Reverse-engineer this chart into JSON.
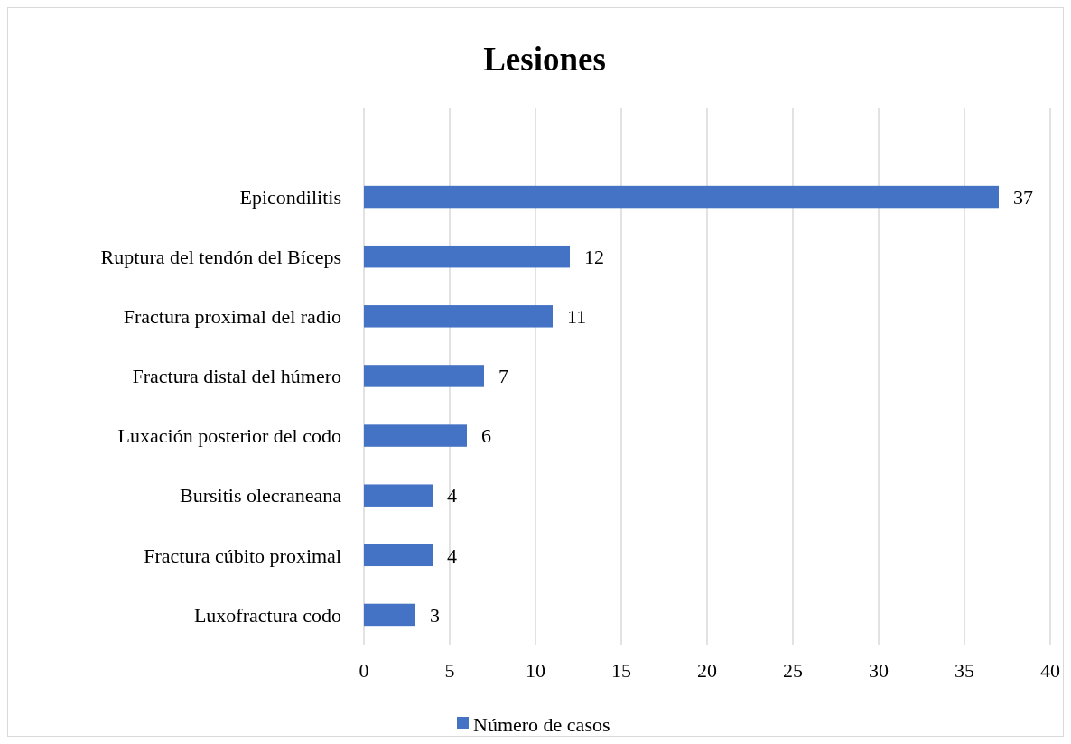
{
  "chart_data": {
    "type": "bar",
    "orientation": "horizontal",
    "title": "Lesiones",
    "categories": [
      "Epicondilitis",
      "Ruptura del tendón del Bíceps",
      "Fractura proximal del radio",
      "Fractura distal del húmero",
      "Luxación posterior del codo",
      "Bursitis olecraneana",
      "Fractura cúbito proximal",
      "Luxofractura codo"
    ],
    "series": [
      {
        "name": "Número de casos",
        "color": "#4472c4",
        "values": [
          37,
          12,
          11,
          7,
          6,
          4,
          4,
          3
        ]
      }
    ],
    "xlim": [
      0,
      40
    ],
    "xticks": [
      0,
      5,
      10,
      15,
      20,
      25,
      30,
      35,
      40
    ],
    "grid": "x",
    "legend": "bottom",
    "data_labels": true
  }
}
